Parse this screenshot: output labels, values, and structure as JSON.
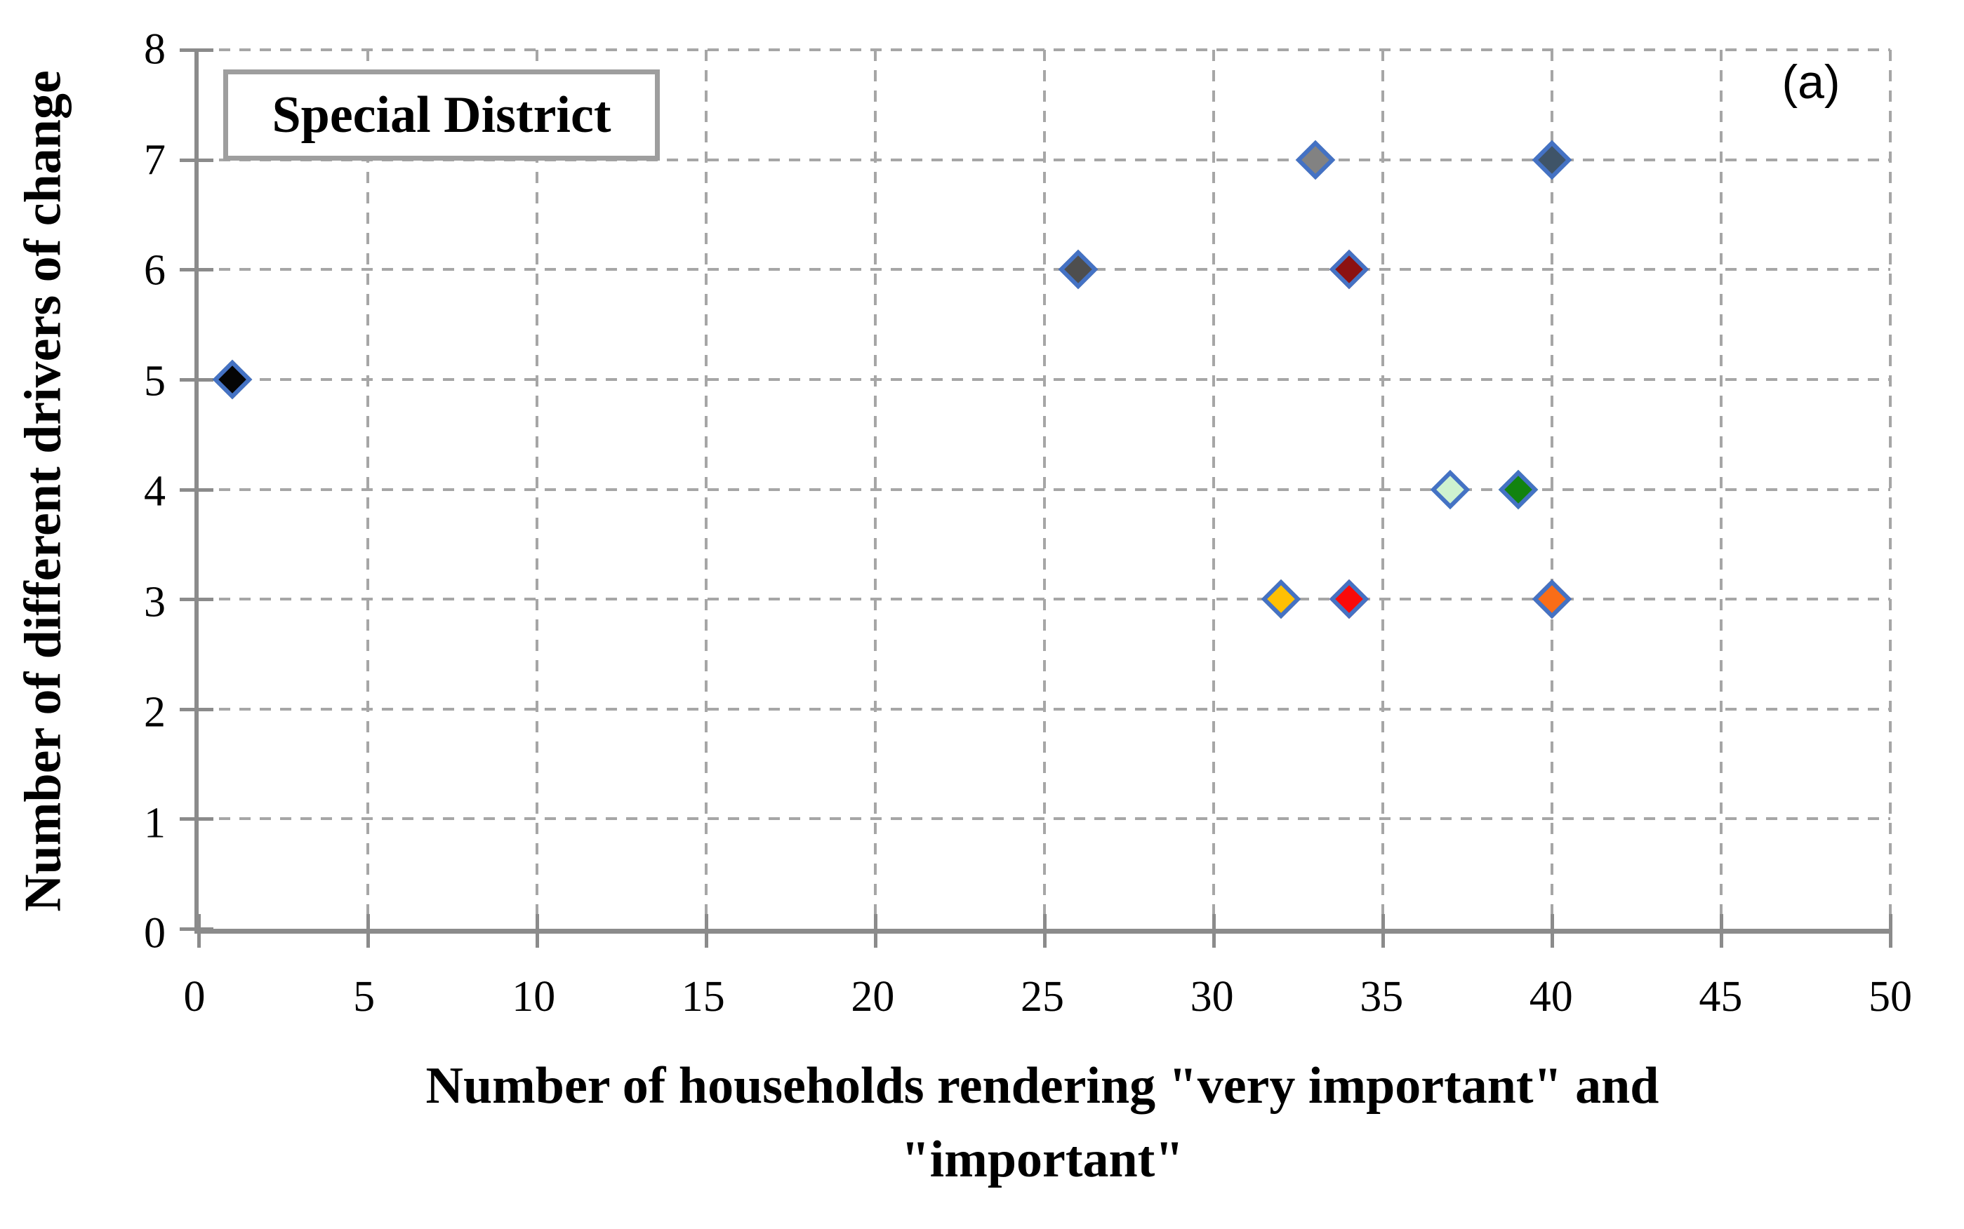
{
  "figure": {
    "panel_label": "(a)"
  },
  "chart_data": {
    "type": "scatter",
    "title": "Special District",
    "xlabel_lines": [
      "Number of households rendering \"very important\" and",
      "\"important\""
    ],
    "ylabel": "Number of different drivers of change",
    "xlim": [
      0,
      50
    ],
    "ylim": [
      0,
      8
    ],
    "xticks": [
      0,
      5,
      10,
      15,
      20,
      25,
      30,
      35,
      40,
      45,
      50
    ],
    "yticks": [
      0,
      1,
      2,
      3,
      4,
      5,
      6,
      7,
      8
    ],
    "grid": "dashed",
    "legend_position": "none",
    "marker": "diamond",
    "marker_border_color": "#4472C4",
    "points": [
      {
        "x": 1,
        "y": 5,
        "fill": "#050505",
        "color_name": "black"
      },
      {
        "x": 26,
        "y": 6,
        "fill": "#4E4E4E",
        "color_name": "dark-gray"
      },
      {
        "x": 33,
        "y": 7,
        "fill": "#828282",
        "color_name": "gray"
      },
      {
        "x": 40,
        "y": 7,
        "fill": "#3F5468",
        "color_name": "slate-blue-gray"
      },
      {
        "x": 34,
        "y": 6,
        "fill": "#8C1111",
        "color_name": "dark-red"
      },
      {
        "x": 37,
        "y": 4,
        "fill": "#CEF2CF",
        "color_name": "pale-green"
      },
      {
        "x": 39,
        "y": 4,
        "fill": "#12830F",
        "color_name": "dark-green"
      },
      {
        "x": 32,
        "y": 3,
        "fill": "#FFC003",
        "color_name": "gold"
      },
      {
        "x": 34,
        "y": 3,
        "fill": "#FA0A0A",
        "color_name": "red"
      },
      {
        "x": 40,
        "y": 3,
        "fill": "#FA6D17",
        "color_name": "orange"
      }
    ]
  },
  "colors": {
    "background": "#FFFFFF",
    "axis": "#8B8B8B",
    "grid": "#A6A6A6",
    "text": "#000000",
    "title_box_border": "#9E9E9E"
  }
}
